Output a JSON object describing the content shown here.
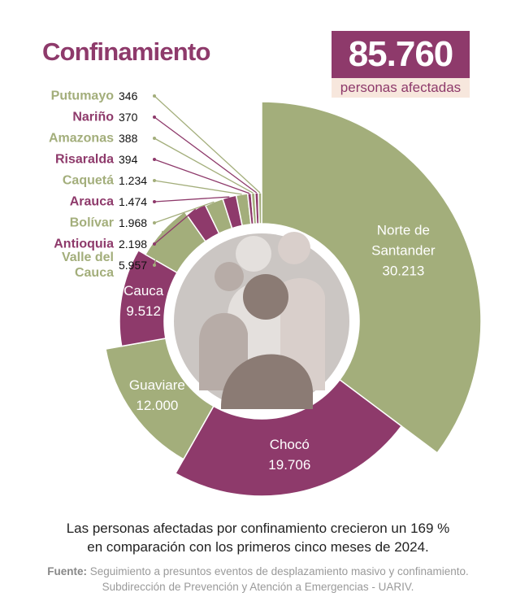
{
  "header": {
    "title": "Confinamiento",
    "total": "85.760",
    "total_caption": "personas afectadas"
  },
  "chart_data": {
    "type": "donut",
    "categories": [
      "Norte de Santander",
      "Chocó",
      "Guaviare",
      "Cauca",
      "Valle del Cauca",
      "Antioquia",
      "Bolívar",
      "Arauca",
      "Caquetá",
      "Risaralda",
      "Amazonas",
      "Nariño",
      "Putumayo"
    ],
    "values": [
      30213,
      19706,
      12000,
      9512,
      5957,
      2198,
      1968,
      1474,
      1234,
      394,
      388,
      370,
      346
    ],
    "value_labels": [
      "30.213",
      "19.706",
      "12.000",
      "9.512",
      "5.957",
      "2.198",
      "1.968",
      "1.474",
      "1.234",
      "394",
      "388",
      "370",
      "346"
    ],
    "colors": [
      "#a3ae7b",
      "#8e3a6b",
      "#a3ae7b",
      "#8e3a6b",
      "#a3ae7b",
      "#8e3a6b",
      "#a3ae7b",
      "#8e3a6b",
      "#a3ae7b",
      "#8e3a6b",
      "#a3ae7b",
      "#8e3a6b",
      "#a3ae7b"
    ]
  },
  "note_lines": [
    "Las personas afectadas por confinamiento crecieron un 169 %",
    "en comparación con los primeros cinco meses de 2024."
  ],
  "source": {
    "label": "Fuente:",
    "lines": [
      "Seguimiento a presuntos eventos de desplazamiento masivo y confinamiento.",
      "Subdirección de Prevención y Atención a Emergencias - UARIV."
    ]
  }
}
